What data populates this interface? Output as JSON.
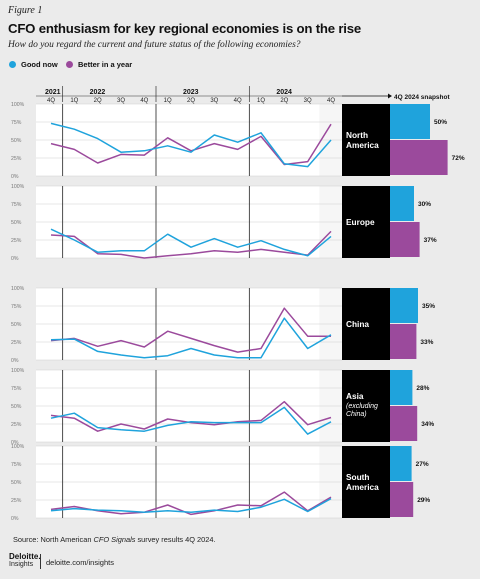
{
  "header": {
    "figure_label": "Figure 1",
    "title": "CFO enthusiasm for key regional economies is on the rise",
    "subtitle": "How do you regard the current and future status of the following economies?"
  },
  "legend": {
    "good_now": "Good now",
    "better_in_year": "Better in a year"
  },
  "colors": {
    "good_now": "#1fa3dc",
    "better_in_year": "#9b4a9c",
    "snapshot_bg": "#000000",
    "highlight_band": "#f6f6f6",
    "grid": "#cfcfcf",
    "panel_bg": "#ffffff"
  },
  "timeline": {
    "years": [
      "2021",
      "2022",
      "2023",
      "2024"
    ],
    "quarters": [
      "4Q",
      "1Q",
      "2Q",
      "3Q",
      "4Q",
      "1Q",
      "2Q",
      "3Q",
      "4Q",
      "1Q",
      "2Q",
      "3Q",
      "4Q"
    ],
    "snapshot_header": "4Q 2024 snapshot"
  },
  "y_ticks": [
    "100%",
    "75%",
    "50%",
    "25%",
    "0%"
  ],
  "chart_data": {
    "type": "line",
    "ylim": [
      0,
      100
    ],
    "x": [
      "4Q 2021",
      "1Q 2022",
      "2Q 2022",
      "3Q 2022",
      "4Q 2022",
      "1Q 2023",
      "2Q 2023",
      "3Q 2023",
      "4Q 2023",
      "1Q 2024",
      "2Q 2024",
      "3Q 2024",
      "4Q 2024"
    ],
    "panels": [
      {
        "region": "North America",
        "region_lines": [
          "North",
          "America"
        ],
        "good_now": [
          73,
          65,
          52,
          33,
          35,
          42,
          33,
          57,
          47,
          60,
          17,
          13,
          50
        ],
        "better_in_year": [
          45,
          37,
          18,
          30,
          29,
          53,
          35,
          45,
          37,
          55,
          16,
          20,
          72
        ],
        "snapshot": {
          "good_now": "50%",
          "better_in_year": "72%"
        }
      },
      {
        "region": "Europe",
        "region_lines": [
          "Europe"
        ],
        "good_now": [
          40,
          25,
          8,
          10,
          10,
          33,
          15,
          27,
          15,
          24,
          12,
          3,
          30
        ],
        "better_in_year": [
          32,
          30,
          6,
          5,
          0,
          3,
          6,
          10,
          8,
          12,
          8,
          4,
          37
        ],
        "snapshot": {
          "good_now": "30%",
          "better_in_year": "37%"
        }
      },
      {
        "region": "China",
        "region_lines": [
          "China"
        ],
        "good_now": [
          28,
          29,
          12,
          7,
          3,
          6,
          16,
          7,
          3,
          3,
          58,
          16,
          35
        ],
        "better_in_year": [
          27,
          30,
          19,
          27,
          18,
          40,
          30,
          20,
          11,
          16,
          72,
          33,
          33
        ],
        "snapshot": {
          "good_now": "35%",
          "better_in_year": "33%"
        }
      },
      {
        "region": "Asia (excluding China)",
        "region_lines": [
          "Asia"
        ],
        "region_note_lines": [
          "(excluding",
          "China)"
        ],
        "good_now": [
          33,
          40,
          20,
          17,
          15,
          23,
          28,
          27,
          27,
          27,
          48,
          11,
          28
        ],
        "better_in_year": [
          37,
          33,
          15,
          25,
          18,
          32,
          27,
          24,
          28,
          30,
          56,
          24,
          34
        ],
        "snapshot": {
          "good_now": "28%",
          "better_in_year": "34%"
        }
      },
      {
        "region": "South America",
        "region_lines": [
          "South",
          "America"
        ],
        "good_now": [
          10,
          13,
          11,
          10,
          8,
          10,
          8,
          11,
          9,
          15,
          26,
          9,
          27
        ],
        "better_in_year": [
          12,
          16,
          10,
          6,
          8,
          18,
          5,
          10,
          18,
          17,
          36,
          10,
          29
        ],
        "snapshot": {
          "good_now": "27%",
          "better_in_year": "29%"
        }
      }
    ]
  },
  "footer": {
    "source_prefix": "Source: North American ",
    "source_italic": "CFO Signals",
    "source_suffix": " survey results 4Q 2024.",
    "brand": "Deloitte.",
    "brand_sub": "Insights",
    "url": "deloitte.com/insights"
  }
}
